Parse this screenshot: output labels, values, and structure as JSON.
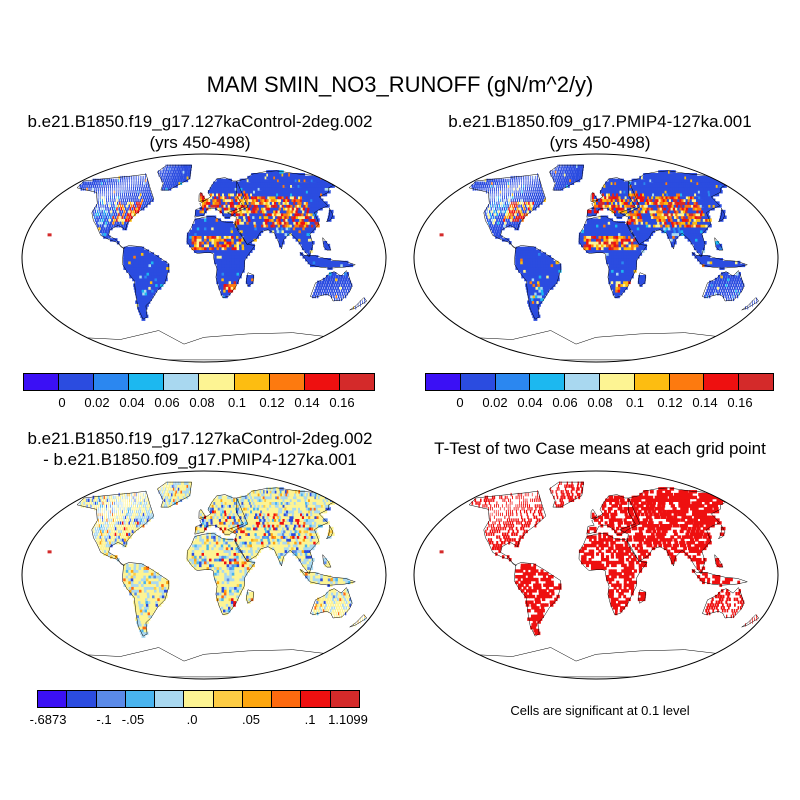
{
  "title": "MAM SMIN_NO3_RUNOFF (gN/m^2/y)",
  "panels": {
    "p1": {
      "line1": "b.e21.B1850.f19_g17.127kaControl-2deg.002",
      "line2": "(yrs 450-498)"
    },
    "p2": {
      "line1": "b.e21.B1850.f09_g17.PMIP4-127ka.001",
      "line2": "(yrs 450-498)"
    },
    "p3": {
      "line1": "b.e21.B1850.f19_g17.127kaControl-2deg.002",
      "line2": "- b.e21.B1850.f09_g17.PMIP4-127ka.001"
    },
    "p4": {
      "line1": "T-Test of two Case means at each grid point"
    }
  },
  "legend_top": {
    "colors": [
      "#3b10f5",
      "#2b4ce0",
      "#2b87f0",
      "#1cb8f0",
      "#a9d8f0",
      "#fdf493",
      "#fdbd11",
      "#fd7a0f",
      "#ee1010",
      "#d42a2a"
    ],
    "labels": [
      "0",
      "0.02",
      "0.04",
      "0.06",
      "0.08",
      "0.1",
      "0.12",
      "0.14",
      "0.16"
    ]
  },
  "legend_diff": {
    "colors": [
      "#3b10f5",
      "#2b4ce0",
      "#5a8ae8",
      "#49b4ef",
      "#a9d8f0",
      "#fdf493",
      "#fdcc44",
      "#fda60f",
      "#fd6a0f",
      "#ee1010",
      "#d42a2a"
    ],
    "labels": [
      "-.6873",
      "-.1",
      "-.05",
      ".0",
      ".05",
      ".1",
      "1.1099"
    ]
  },
  "significance_note": "Cells are significant at 0.1 level",
  "map_colors": {
    "ocean": "#ffffff",
    "base_land": "#2b4ce0",
    "diff_base": "#a9d8f0",
    "sig": "#ee1010",
    "antarctica_top": "#2b4ce0",
    "antarctica_diff": "#fdf493"
  }
}
